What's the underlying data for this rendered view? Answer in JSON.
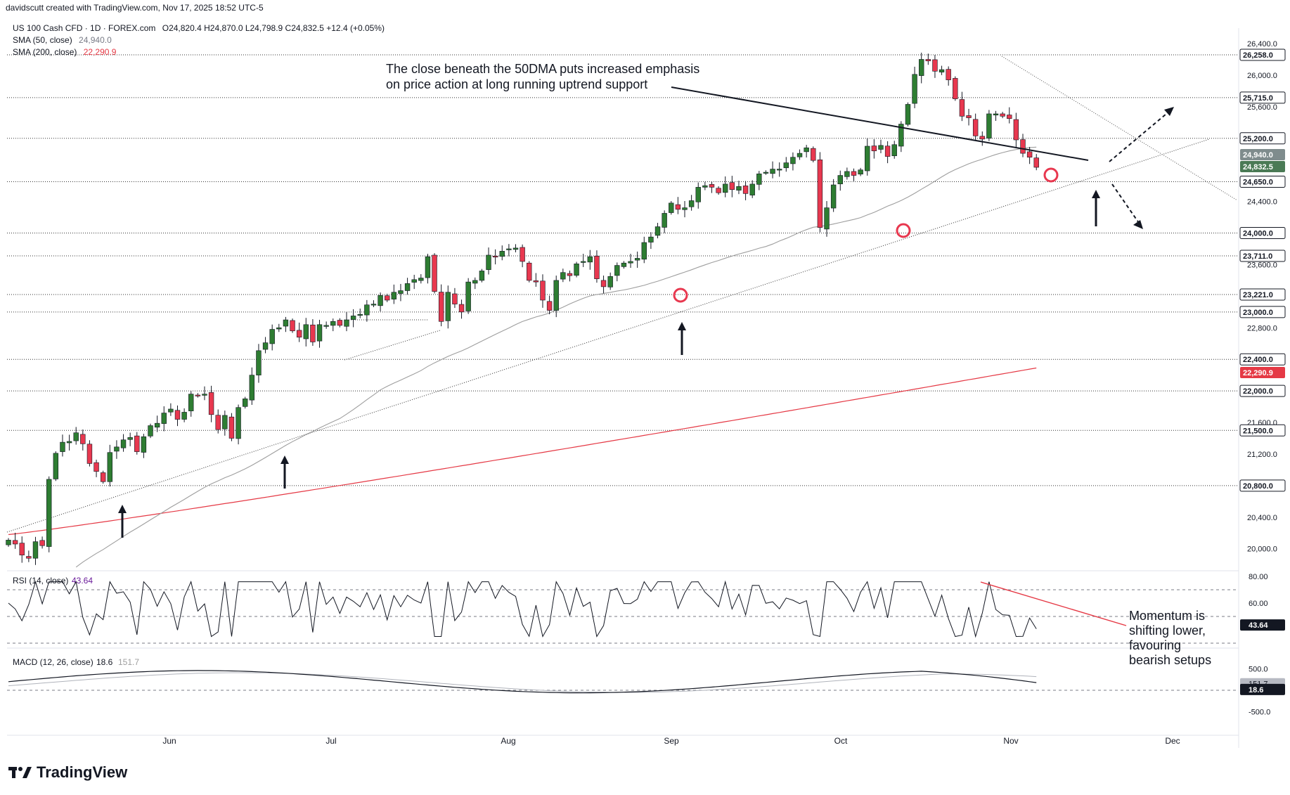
{
  "header": {
    "byline": "davidscutt created with TradingView.com, Nov 17, 2025 18:52 UTC-5",
    "symbol_line": "US 100 Cash CFD · 1D · FOREX.com",
    "ohlc": "O24,820.4 H24,870.0 L24,798.9 C24,832.5 +12.4 (+0.05%)",
    "sma50_label": "SMA (50, close)",
    "sma50_value": "24,940.0",
    "sma200_label": "SMA (200, close)",
    "sma200_value": "22,290.9"
  },
  "annotations": {
    "main_note_line1": "The close beneath the 50DMA puts increased emphasis",
    "main_note_line2": "on price action at long running uptrend support",
    "momentum_line1": "Momentum is",
    "momentum_line2": "shifting lower,",
    "momentum_line3": "favouring",
    "momentum_line4": "bearish setups"
  },
  "rsi_panel": {
    "label": "RSI (14, close)",
    "value": "43.64"
  },
  "macd_panel": {
    "label": "MACD (12, 26, close)",
    "value": "18.6",
    "signal": "151.7"
  },
  "brand": {
    "name": "TradingView"
  },
  "colors": {
    "up": "#2e7d32",
    "down": "#e8384f",
    "sma200": "#e53945",
    "sma50": "#9e9e9e",
    "text": "#131722"
  },
  "chart_data": {
    "type": "candlestick",
    "title": "US 100 Cash CFD · 1D · FOREX.com",
    "y_scale": {
      "min": 19800,
      "max": 26600
    },
    "y_ticks": [
      "26,400.0",
      "26,000.0",
      "25,600.0",
      "24,400.0",
      "23,600.0",
      "22,800.0",
      "21,600.0",
      "21,200.0",
      "20,400.0",
      "20,000.0"
    ],
    "x_ticks": [
      "Jun",
      "Jul",
      "Aug",
      "Sep",
      "Oct",
      "Nov",
      "Dec"
    ],
    "levels": [
      {
        "value": 26258,
        "label": "26,258.0"
      },
      {
        "value": 25715,
        "label": "25,715.0"
      },
      {
        "value": 25200,
        "label": "25,200.0"
      },
      {
        "value": 24650,
        "label": "24,650.0"
      },
      {
        "value": 24000,
        "label": "24,000.0"
      },
      {
        "value": 23711,
        "label": "23,711.0"
      },
      {
        "value": 23221,
        "label": "23,221.0"
      },
      {
        "value": 23000,
        "label": "23,000.0"
      },
      {
        "value": 22400,
        "label": "22,400.0"
      },
      {
        "value": 22000,
        "label": "22,000.0"
      },
      {
        "value": 21500,
        "label": "21,500.0"
      },
      {
        "value": 20800,
        "label": "20,800.0"
      }
    ],
    "price_tags": [
      {
        "value": 24940,
        "label": "24,940.0",
        "kind": "sma50"
      },
      {
        "value": 24832.5,
        "label": "24,832.5",
        "kind": "last"
      },
      {
        "value": 22290.9,
        "label": "22,290.9",
        "kind": "sma200"
      }
    ],
    "closes": [
      20110,
      20060,
      19920,
      19880,
      20090,
      20040,
      20880,
      21210,
      21350,
      21360,
      21470,
      21330,
      21080,
      20980,
      20850,
      21220,
      21290,
      21380,
      21410,
      21230,
      21420,
      21560,
      21590,
      21720,
      21770,
      21640,
      21730,
      21960,
      21940,
      21960,
      21700,
      21510,
      21690,
      21400,
      21790,
      21900,
      22200,
      22510,
      22610,
      22780,
      22800,
      22900,
      22760,
      22680,
      22840,
      22620,
      22840,
      22830,
      22880,
      22830,
      22900,
      22950,
      22970,
      23090,
      23100,
      23210,
      23150,
      23250,
      23270,
      23360,
      23410,
      23430,
      23700,
      23260,
      22880,
      23250,
      23100,
      23000,
      23380,
      23400,
      23520,
      23720,
      23700,
      23770,
      23800,
      23810,
      23640,
      23400,
      23380,
      23150,
      23020,
      23400,
      23500,
      23460,
      23610,
      23640,
      23700,
      23420,
      23320,
      23450,
      23590,
      23620,
      23640,
      23680,
      23880,
      23950,
      24080,
      24250,
      24380,
      24300,
      24320,
      24410,
      24580,
      24600,
      24580,
      24510,
      24620,
      24550,
      24590,
      24500,
      24620,
      24750,
      24770,
      24810,
      24810,
      24890,
      24960,
      25010,
      25080,
      24920,
      24070,
      24320,
      24610,
      24730,
      24780,
      24730,
      24800,
      25100,
      25040,
      25110,
      24970,
      25120,
      25380,
      25630,
      26010,
      26200,
      26180,
      26050,
      26070,
      25940,
      25700,
      25480,
      25460,
      25230,
      25190,
      25510,
      25510,
      25480,
      25450,
      25180,
      25010,
      24960,
      24832.5
    ],
    "closes_range": "May 1, 2025 → Nov 17, 2025 (daily, trading days)",
    "sma50_end": 24940.0,
    "sma200_end": 22290.9,
    "rsi": {
      "last": 43.64,
      "levels": [
        70,
        50,
        30
      ],
      "ticks": [
        "80.00",
        "60.00"
      ]
    },
    "macd": {
      "macd_last": 18.6,
      "signal_last": 151.7,
      "ticks": [
        "500.0",
        "-500.0"
      ]
    }
  }
}
